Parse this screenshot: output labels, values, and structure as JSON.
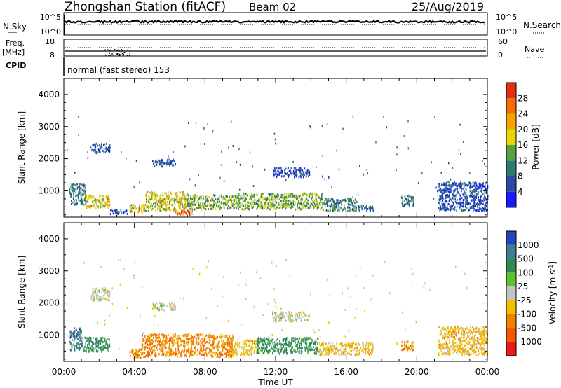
{
  "header": {
    "station": "Zhongshan Station (fitACF)",
    "beam": "Beam 02",
    "date": "25/Aug/2019"
  },
  "strip_labels": {
    "nsky": "N.Sky",
    "nsky_hi": "10^5",
    "nsky_lo": "10^0",
    "nsearch": "N.Search",
    "nsearch_hi": "10^5",
    "nsearch_lo": "10^0",
    "freq_top": "Freq.",
    "freq_unit": "[MHz]",
    "freq_hi": "18",
    "freq_lo": "8",
    "nave": "Nave",
    "nave_hi": "60",
    "nave_lo": "0",
    "cpid": "CPID",
    "mode": "normal (fast stereo) 153"
  },
  "axes": {
    "time_ticks": [
      "00:00",
      "04:00",
      "08:00",
      "12:00",
      "16:00",
      "20:00",
      "00:00"
    ],
    "xlabel": "Time UT",
    "ylabel": "Slant Range [km]",
    "range_ticks": [
      "1000",
      "2000",
      "3000",
      "4000"
    ]
  },
  "power_scale": {
    "label": "Power [dB]",
    "ticks": [
      "4",
      "8",
      "12",
      "16",
      "20",
      "24",
      "28"
    ],
    "colors": [
      "#1a1aff",
      "#2a4aa8",
      "#2e7a6e",
      "#55a043",
      "#e8d700",
      "#f5a400",
      "#f56d00",
      "#e62d10"
    ]
  },
  "velocity_scale": {
    "label": "Velocity [m s^-1]",
    "ticks": [
      "1000",
      "500",
      "100",
      "25",
      "-25",
      "-100",
      "-500",
      "-1000"
    ],
    "colors": [
      "#2446b8",
      "#3e7e8e",
      "#2e8a55",
      "#5ec030",
      "#c2c2c2",
      "#f0c000",
      "#f08000",
      "#f05a00",
      "#e81c1c"
    ]
  },
  "chart_data": [
    {
      "type": "heatmap",
      "title": "Power",
      "xlabel": "Time UT",
      "ylabel": "Slant Range [km]",
      "xlim": [
        "00:00",
        "24:00"
      ],
      "ylim": [
        180,
        4500
      ],
      "colorbar_label": "Power [dB]",
      "colorbar_ticks": [
        4,
        8,
        12,
        16,
        20,
        24,
        28
      ],
      "regions": [
        {
          "t0": 0.3,
          "t1": 1.2,
          "r0": 600,
          "r1": 1250,
          "level": 12
        },
        {
          "t0": 1.2,
          "t1": 2.6,
          "r0": 500,
          "r1": 900,
          "level": 20
        },
        {
          "t0": 2.6,
          "t1": 3.6,
          "r0": 300,
          "r1": 450,
          "level": 8
        },
        {
          "t0": 3.7,
          "t1": 4.6,
          "r0": 350,
          "r1": 600,
          "level": 20
        },
        {
          "t0": 4.6,
          "t1": 7.0,
          "r0": 400,
          "r1": 1000,
          "level": 20
        },
        {
          "t0": 6.3,
          "t1": 7.3,
          "r0": 280,
          "r1": 420,
          "level": 26
        },
        {
          "t0": 7.0,
          "t1": 9.8,
          "r0": 450,
          "r1": 900,
          "level": 16
        },
        {
          "t0": 9.8,
          "t1": 14.6,
          "r0": 450,
          "r1": 950,
          "level": 16
        },
        {
          "t0": 14.6,
          "t1": 16.6,
          "r0": 400,
          "r1": 800,
          "level": 12
        },
        {
          "t0": 16.6,
          "t1": 17.6,
          "r0": 400,
          "r1": 600,
          "level": 8
        },
        {
          "t0": 19.1,
          "t1": 19.8,
          "r0": 550,
          "r1": 900,
          "level": 12
        },
        {
          "t0": 21.2,
          "t1": 24.0,
          "r0": 400,
          "r1": 1300,
          "level": 8
        },
        {
          "t0": 1.5,
          "t1": 2.6,
          "r0": 2200,
          "r1": 2500,
          "level": 8
        },
        {
          "t0": 5.0,
          "t1": 6.3,
          "r0": 1800,
          "r1": 2000,
          "level": 8
        },
        {
          "t0": 11.8,
          "t1": 13.9,
          "r0": 1450,
          "r1": 1750,
          "level": 8
        }
      ]
    },
    {
      "type": "heatmap",
      "title": "Velocity",
      "xlabel": "Time UT",
      "ylabel": "Slant Range [km]",
      "xlim": [
        "00:00",
        "24:00"
      ],
      "ylim": [
        180,
        4500
      ],
      "colorbar_label": "Velocity [m s^-1]",
      "colorbar_ticks": [
        1000,
        500,
        100,
        25,
        -25,
        -100,
        -500,
        -1000
      ],
      "regions": [
        {
          "t0": 0.3,
          "t1": 1.0,
          "r0": 550,
          "r1": 1250,
          "level": 500
        },
        {
          "t0": 1.0,
          "t1": 2.6,
          "r0": 500,
          "r1": 950,
          "level": 100
        },
        {
          "t0": 3.7,
          "t1": 4.4,
          "r0": 300,
          "r1": 600,
          "level": -500
        },
        {
          "t0": 4.4,
          "t1": 9.6,
          "r0": 350,
          "r1": 1050,
          "level": -500
        },
        {
          "t0": 9.6,
          "t1": 10.9,
          "r0": 400,
          "r1": 900,
          "level": -100
        },
        {
          "t0": 10.9,
          "t1": 14.4,
          "r0": 450,
          "r1": 950,
          "level": 100
        },
        {
          "t0": 14.4,
          "t1": 17.5,
          "r0": 400,
          "r1": 800,
          "level": -100
        },
        {
          "t0": 19.1,
          "t1": 19.8,
          "r0": 550,
          "r1": 850,
          "level": -500
        },
        {
          "t0": 21.2,
          "t1": 24.0,
          "r0": 400,
          "r1": 1300,
          "level": -100
        },
        {
          "t0": 1.5,
          "t1": 2.6,
          "r0": 2100,
          "r1": 2500,
          "level": 25
        },
        {
          "t0": 5.0,
          "t1": 6.3,
          "r0": 1800,
          "r1": 2050,
          "level": 25
        },
        {
          "t0": 11.8,
          "t1": 13.9,
          "r0": 1450,
          "r1": 1750,
          "level": 25
        }
      ]
    }
  ]
}
